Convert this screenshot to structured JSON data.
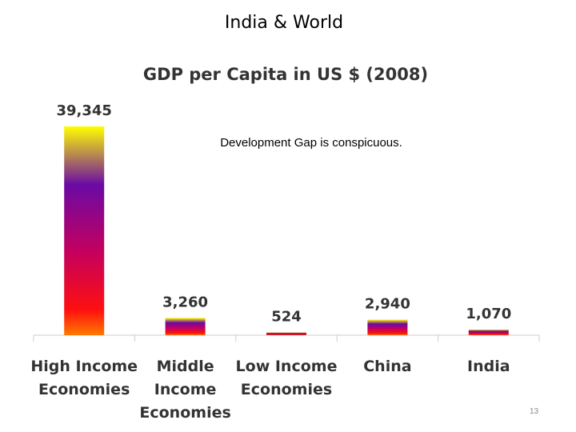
{
  "slide": {
    "title": "India & World",
    "number": "13"
  },
  "chart_data": {
    "type": "bar",
    "title": "GDP per Capita in US $ (2008)",
    "annotation": "Development Gap is conspicuous.",
    "categories": [
      [
        "High Income",
        "Economies"
      ],
      [
        "Middle",
        "Income",
        "Economies"
      ],
      [
        "Low Income",
        "Economies"
      ],
      [
        "China"
      ],
      [
        "India"
      ]
    ],
    "values": [
      39345,
      3260,
      524,
      2940,
      1070
    ],
    "data_labels": [
      "39,345",
      "3,260",
      "524",
      "2,940",
      "1,070"
    ],
    "ylim": [
      0,
      39345
    ],
    "xlabel": "",
    "ylabel": "",
    "grid": false,
    "legend": "none",
    "colors": {
      "gradient": [
        "#ffff00",
        "#6a0aa5",
        "#c4005e",
        "#ff1010",
        "#ff7a00"
      ],
      "text": "#333333",
      "axis": "#cccccc"
    }
  }
}
